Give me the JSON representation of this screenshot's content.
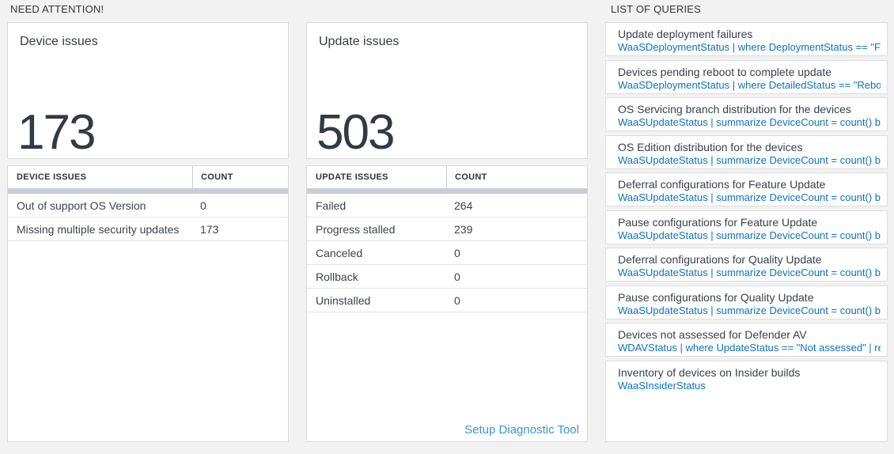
{
  "sections": {
    "need_attention": {
      "title": "NEED ATTENTION!"
    },
    "list_of_queries": {
      "title": "LIST OF QUERIES"
    }
  },
  "tiles": {
    "device_issues": {
      "title": "Device issues",
      "value": "173"
    },
    "update_issues": {
      "title": "Update issues",
      "value": "503"
    }
  },
  "device_table": {
    "headers": [
      "DEVICE ISSUES",
      "COUNT"
    ],
    "rows": [
      {
        "label": "Out of support OS Version",
        "count": "0"
      },
      {
        "label": "Missing multiple security updates",
        "count": "173"
      }
    ]
  },
  "update_table": {
    "headers": [
      "UPDATE ISSUES",
      "COUNT"
    ],
    "rows": [
      {
        "label": "Failed",
        "count": "264"
      },
      {
        "label": "Progress stalled",
        "count": "239"
      },
      {
        "label": "Canceled",
        "count": "0"
      },
      {
        "label": "Rollback",
        "count": "0"
      },
      {
        "label": "Uninstalled",
        "count": "0"
      }
    ],
    "footer_link": "Setup Diagnostic Tool"
  },
  "queries": {
    "items": [
      {
        "title": "Update deployment failures",
        "query": "WaaSDeploymentStatus | where DeploymentStatus == \"Failed\" |..."
      },
      {
        "title": "Devices pending reboot to complete update",
        "query": "WaaSDeploymentStatus | where DetailedStatus == \"Reboot pend..."
      },
      {
        "title": "OS Servicing branch distribution for the devices",
        "query": "WaaSUpdateStatus | summarize DeviceCount = count() by OSSer..."
      },
      {
        "title": "OS Edition distribution for the devices",
        "query": "WaaSUpdateStatus | summarize DeviceCount = count() by OSEdit..."
      },
      {
        "title": "Deferral configurations for Feature Update",
        "query": "WaaSUpdateStatus | summarize DeviceCount = count() by Featur..."
      },
      {
        "title": "Pause configurations for Feature Update",
        "query": "WaaSUpdateStatus | summarize DeviceCount = count() by Featur..."
      },
      {
        "title": "Deferral configurations for Quality Update",
        "query": "WaaSUpdateStatus | summarize DeviceCount = count() by Qualit..."
      },
      {
        "title": "Pause configurations for Quality Update",
        "query": "WaaSUpdateStatus | summarize DeviceCount = count() by Qualit..."
      },
      {
        "title": "Devices not assessed for Defender AV",
        "query": "WDAVStatus | where UpdateStatus == \"Not assessed\" | render ta..."
      },
      {
        "title": "Inventory of devices on Insider builds",
        "query": "WaaSInsiderStatus"
      }
    ]
  },
  "colors": {
    "page_background": "#f2f2f2",
    "card_background": "#ffffff",
    "card_border": "#d9d9d9",
    "stat_number": "#333a45",
    "query_code_blue": "#0d72c6",
    "diagnostic_link_blue": "#3a96d5",
    "table_header_bar": "#c9ced3"
  }
}
